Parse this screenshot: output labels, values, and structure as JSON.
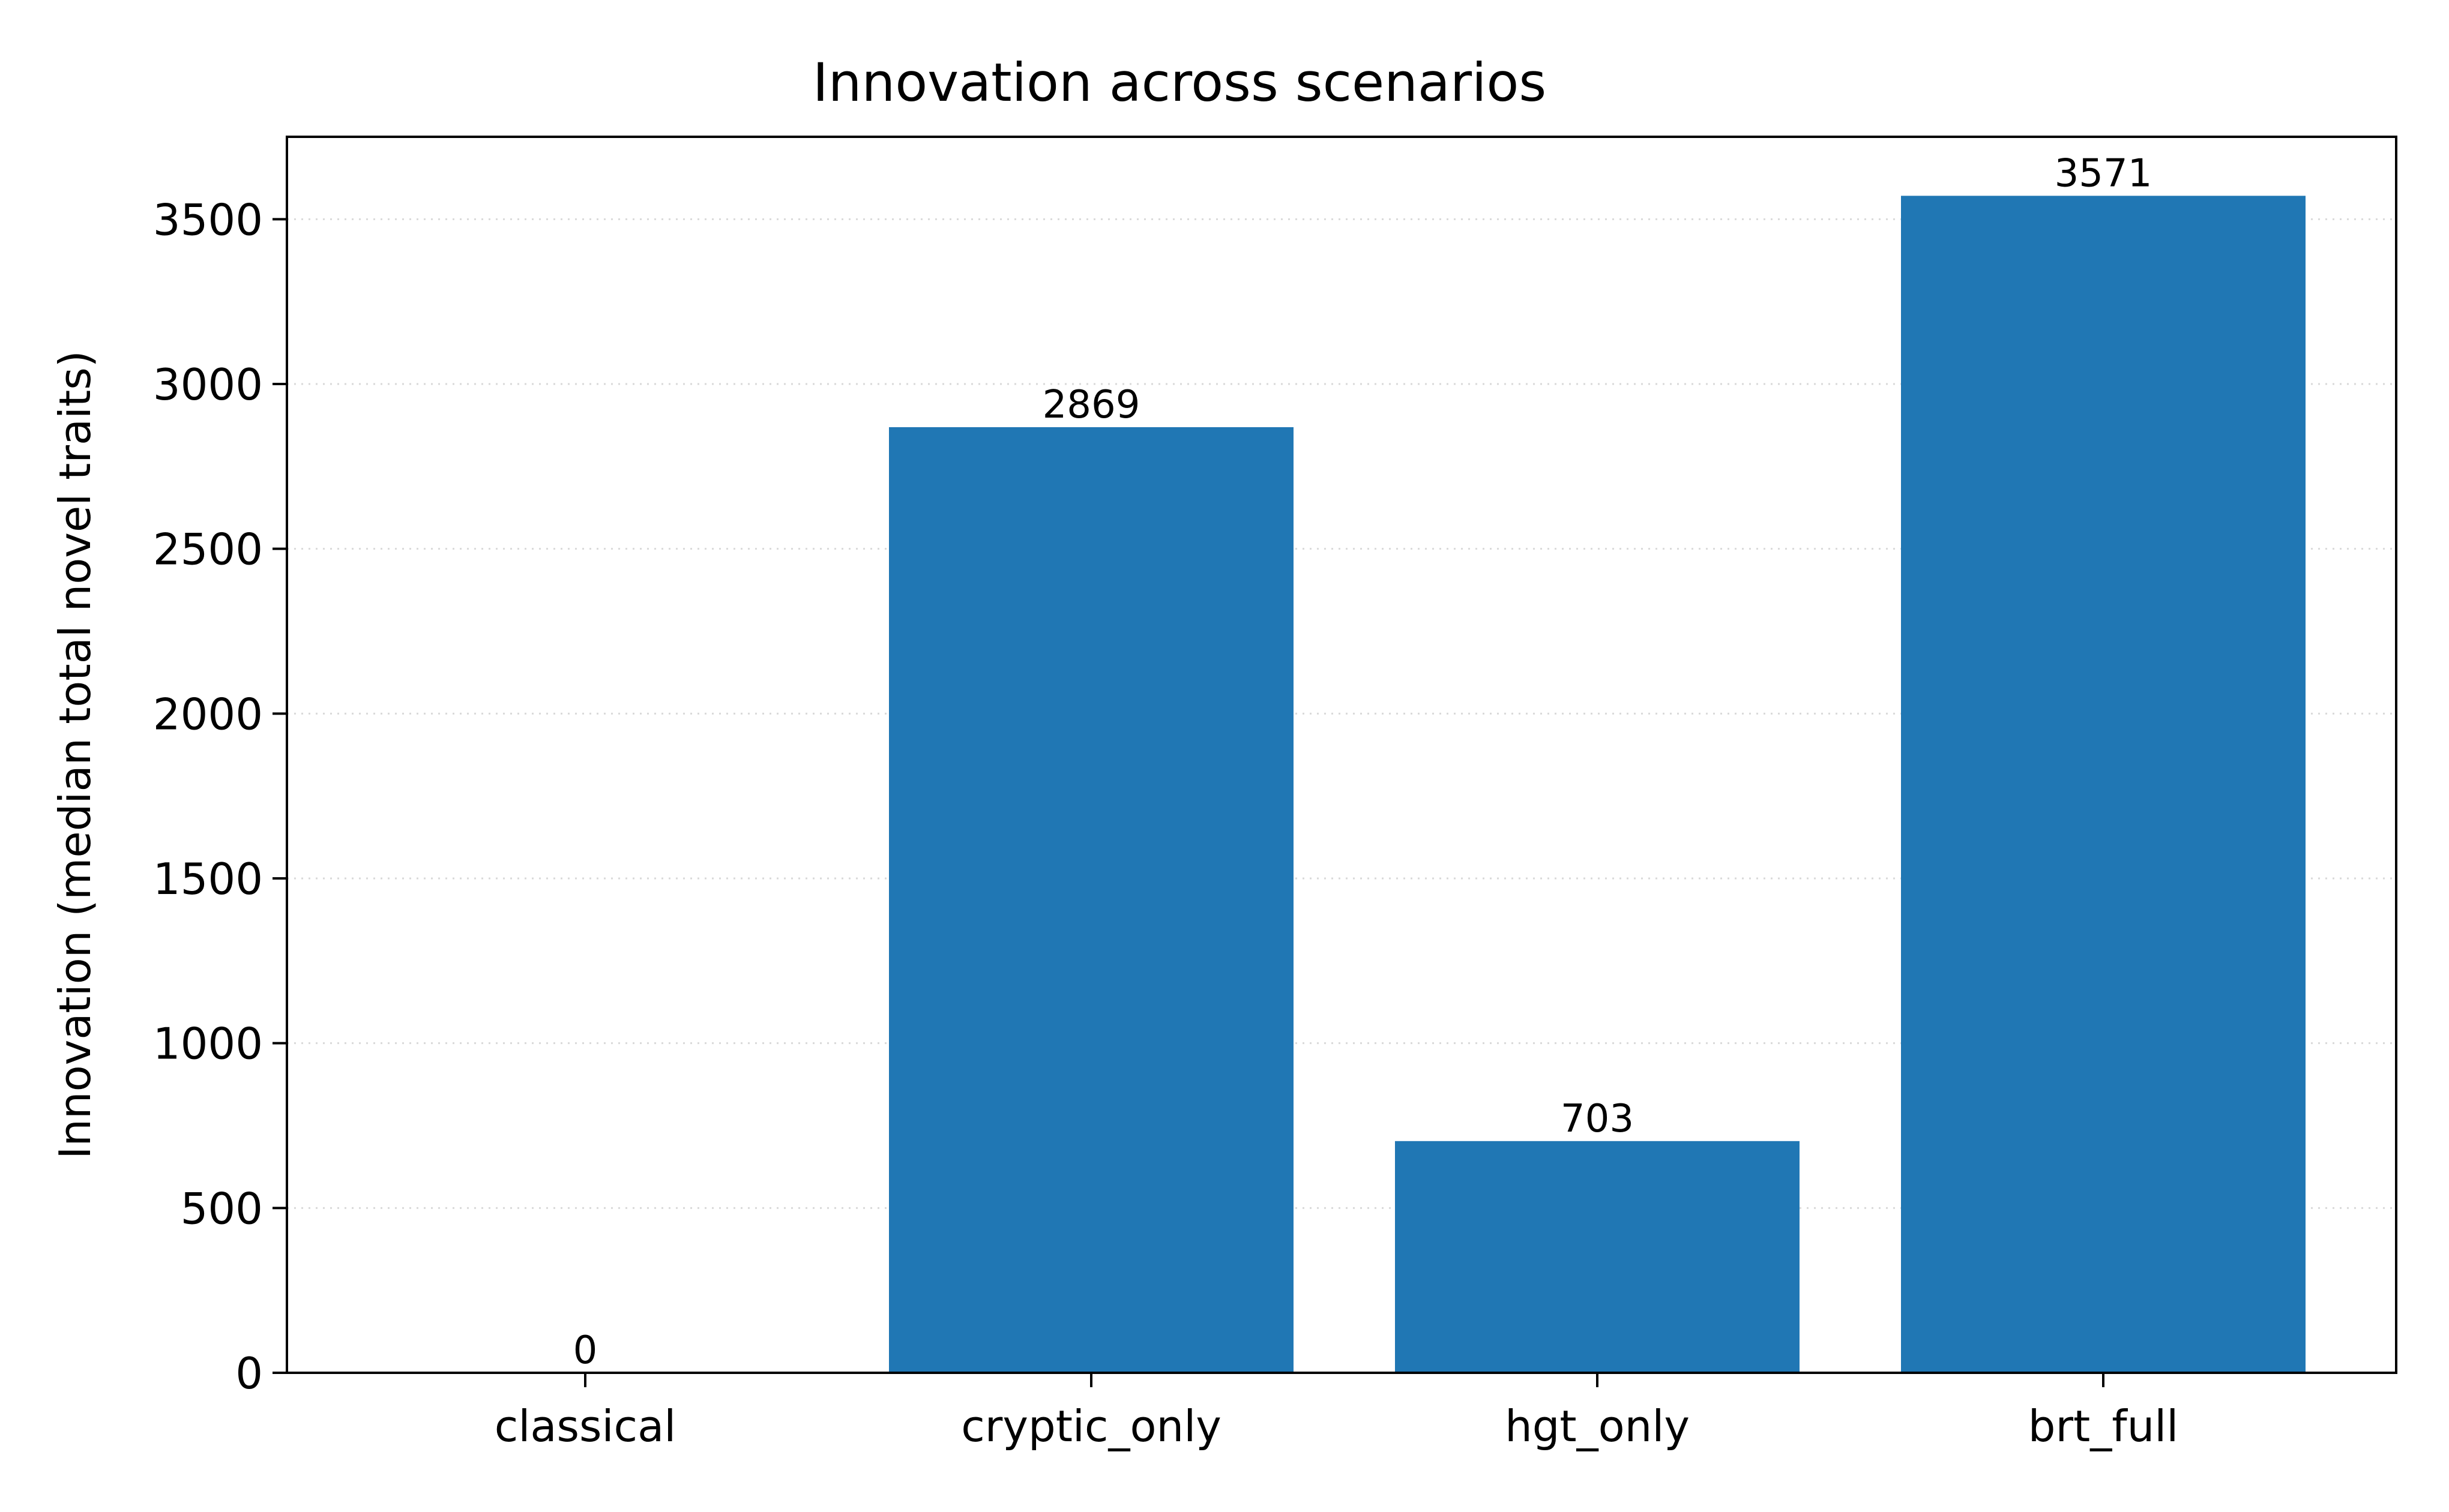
{
  "chart_data": {
    "type": "bar",
    "title": "Innovation across scenarios",
    "xlabel": "",
    "ylabel": "Innovation (median total novel traits)",
    "categories": [
      "classical",
      "cryptic_only",
      "hgt_only",
      "brt_full"
    ],
    "values": [
      0,
      2869,
      703,
      3571
    ],
    "data_labels": [
      "0",
      "2869",
      "703",
      "3571"
    ],
    "ylim": [
      0,
      3750
    ],
    "yticks": [
      0,
      500,
      1000,
      1500,
      2000,
      2500,
      3000,
      3500
    ],
    "ytick_labels": [
      "0",
      "500",
      "1000",
      "1500",
      "2000",
      "2500",
      "3000",
      "3500"
    ],
    "grid": "y, dotted",
    "bar_color": "#2077b4"
  }
}
